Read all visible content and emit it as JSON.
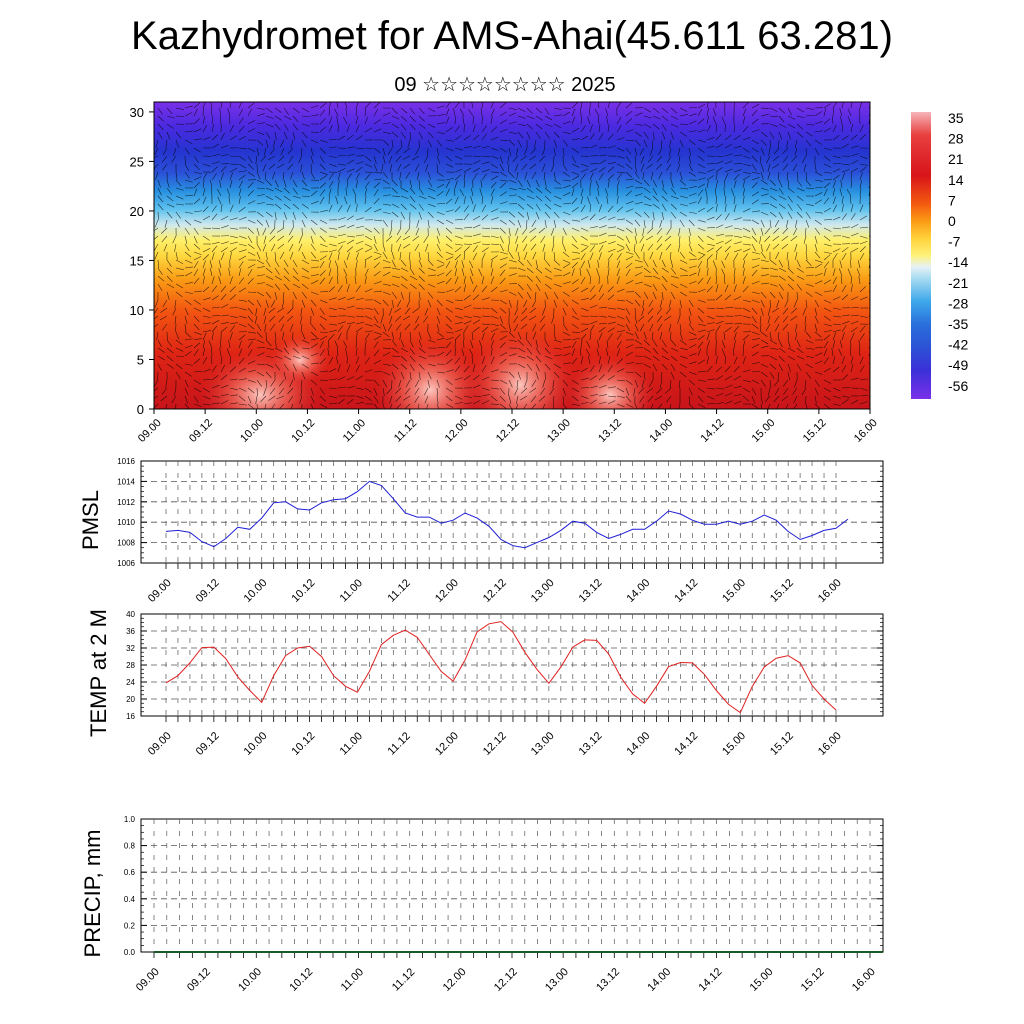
{
  "header": {
    "title": "Kazhydromet for AMS-Ahai(45.611 63.281)",
    "subtitle": "09 ☆☆☆☆☆☆☆☆ 2025"
  },
  "colors": {
    "pmsl_line": "#1f1fd6",
    "temp_line": "#e02020",
    "precip_line": "#1a5a2a",
    "frame": "#000000",
    "grid": "#555555"
  },
  "chart_data": [
    {
      "id": "cross_section",
      "type": "heatmap",
      "title": "",
      "xlabel": "",
      "ylabel": "",
      "ylim": [
        0,
        31
      ],
      "yticks": [
        0,
        5,
        10,
        15,
        20,
        25,
        30
      ],
      "x_tick_labels": [
        "09.00",
        "09.12",
        "10.00",
        "10.12",
        "11.00",
        "11.12",
        "12.00",
        "12.12",
        "13.00",
        "13.12",
        "14.00",
        "14.12",
        "15.00",
        "15.12",
        "16.00"
      ],
      "colorbar_labels": [
        "35",
        "28",
        "21",
        "14",
        "7",
        "0",
        "-7",
        "-14",
        "-21",
        "-28",
        "-35",
        "-42",
        "-49",
        "-56"
      ],
      "overlay": "wind barbs",
      "legend_position": "right"
    },
    {
      "id": "pmsl",
      "type": "line",
      "ylabel": "PMSL",
      "ylim": [
        1006,
        1016
      ],
      "yticks": [
        "1006",
        "1008",
        "1010",
        "1012",
        "1014",
        "1016"
      ],
      "x_tick_labels": [
        "09.00",
        "09.12",
        "10.00",
        "10.12",
        "11.00",
        "11.12",
        "12.00",
        "12.12",
        "13.00",
        "13.12",
        "14.00",
        "14.12",
        "15.00",
        "15.12",
        "16.00"
      ],
      "grid": true,
      "values": [
        1009.1,
        1009.2,
        1009.0,
        1008.1,
        1007.6,
        1008.4,
        1009.5,
        1009.3,
        1010.4,
        1011.9,
        1012.0,
        1011.3,
        1011.2,
        1011.9,
        1012.2,
        1012.3,
        1013.0,
        1014.0,
        1013.6,
        1012.3,
        1010.9,
        1010.5,
        1010.5,
        1009.9,
        1010.2,
        1010.9,
        1010.4,
        1009.6,
        1008.3,
        1007.7,
        1007.5,
        1008.0,
        1008.5,
        1009.2,
        1010.1,
        1009.9,
        1009.0,
        1008.4,
        1008.8,
        1009.3,
        1009.3,
        1010.1,
        1011.1,
        1010.8,
        1010.2,
        1009.8,
        1009.8,
        1010.1,
        1009.8,
        1010.1,
        1010.7,
        1010.2,
        1009.1,
        1008.3,
        1008.7,
        1009.2,
        1009.4,
        1010.3
      ]
    },
    {
      "id": "temp2m",
      "type": "line",
      "ylabel": "TEMP at 2 M",
      "ylim": [
        16,
        40
      ],
      "yticks": [
        "16",
        "20",
        "24",
        "28",
        "32",
        "36",
        "40"
      ],
      "x_tick_labels": [
        "09.00",
        "09.12",
        "10.00",
        "10.12",
        "11.00",
        "11.12",
        "12.00",
        "12.12",
        "13.00",
        "13.12",
        "14.00",
        "14.12",
        "15.00",
        "15.12",
        "16.00"
      ],
      "grid": true,
      "values": [
        23.8,
        25.5,
        28.5,
        32.1,
        32.2,
        29.5,
        25.2,
        22.0,
        19.2,
        25.5,
        30.2,
        32.0,
        32.4,
        30.0,
        25.5,
        23.0,
        21.6,
        26.5,
        32.8,
        35.0,
        36.2,
        34.5,
        30.5,
        26.5,
        24.2,
        29.2,
        35.8,
        37.7,
        38.2,
        35.7,
        31.0,
        27.0,
        23.7,
        27.5,
        32.2,
        33.9,
        33.8,
        30.6,
        25.2,
        21.2,
        19.0,
        23.0,
        27.6,
        28.6,
        28.5,
        25.8,
        22.0,
        18.8,
        16.8,
        23.0,
        27.5,
        29.6,
        30.2,
        28.5,
        23.2,
        20.0,
        17.4
      ]
    },
    {
      "id": "precip",
      "type": "line",
      "ylabel": "PRECIP, mm",
      "ylim": [
        0,
        1
      ],
      "yticks": [
        "0.0",
        "0.2",
        "0.4",
        "0.6",
        "0.8",
        "1.0"
      ],
      "x_tick_labels": [
        "09.00",
        "09.12",
        "10.00",
        "10.12",
        "11.00",
        "11.12",
        "12.00",
        "12.12",
        "13.00",
        "13.12",
        "14.00",
        "14.12",
        "15.00",
        "15.12",
        "16.00"
      ],
      "grid": true,
      "values": [
        0,
        0,
        0,
        0,
        0,
        0,
        0,
        0,
        0,
        0,
        0,
        0,
        0,
        0,
        0,
        0,
        0,
        0,
        0,
        0,
        0,
        0,
        0,
        0,
        0,
        0,
        0,
        0,
        0,
        0,
        0,
        0,
        0,
        0,
        0,
        0,
        0,
        0,
        0,
        0,
        0,
        0,
        0,
        0,
        0,
        0,
        0,
        0,
        0,
        0,
        0,
        0,
        0,
        0,
        0,
        0,
        0,
        0
      ]
    }
  ]
}
